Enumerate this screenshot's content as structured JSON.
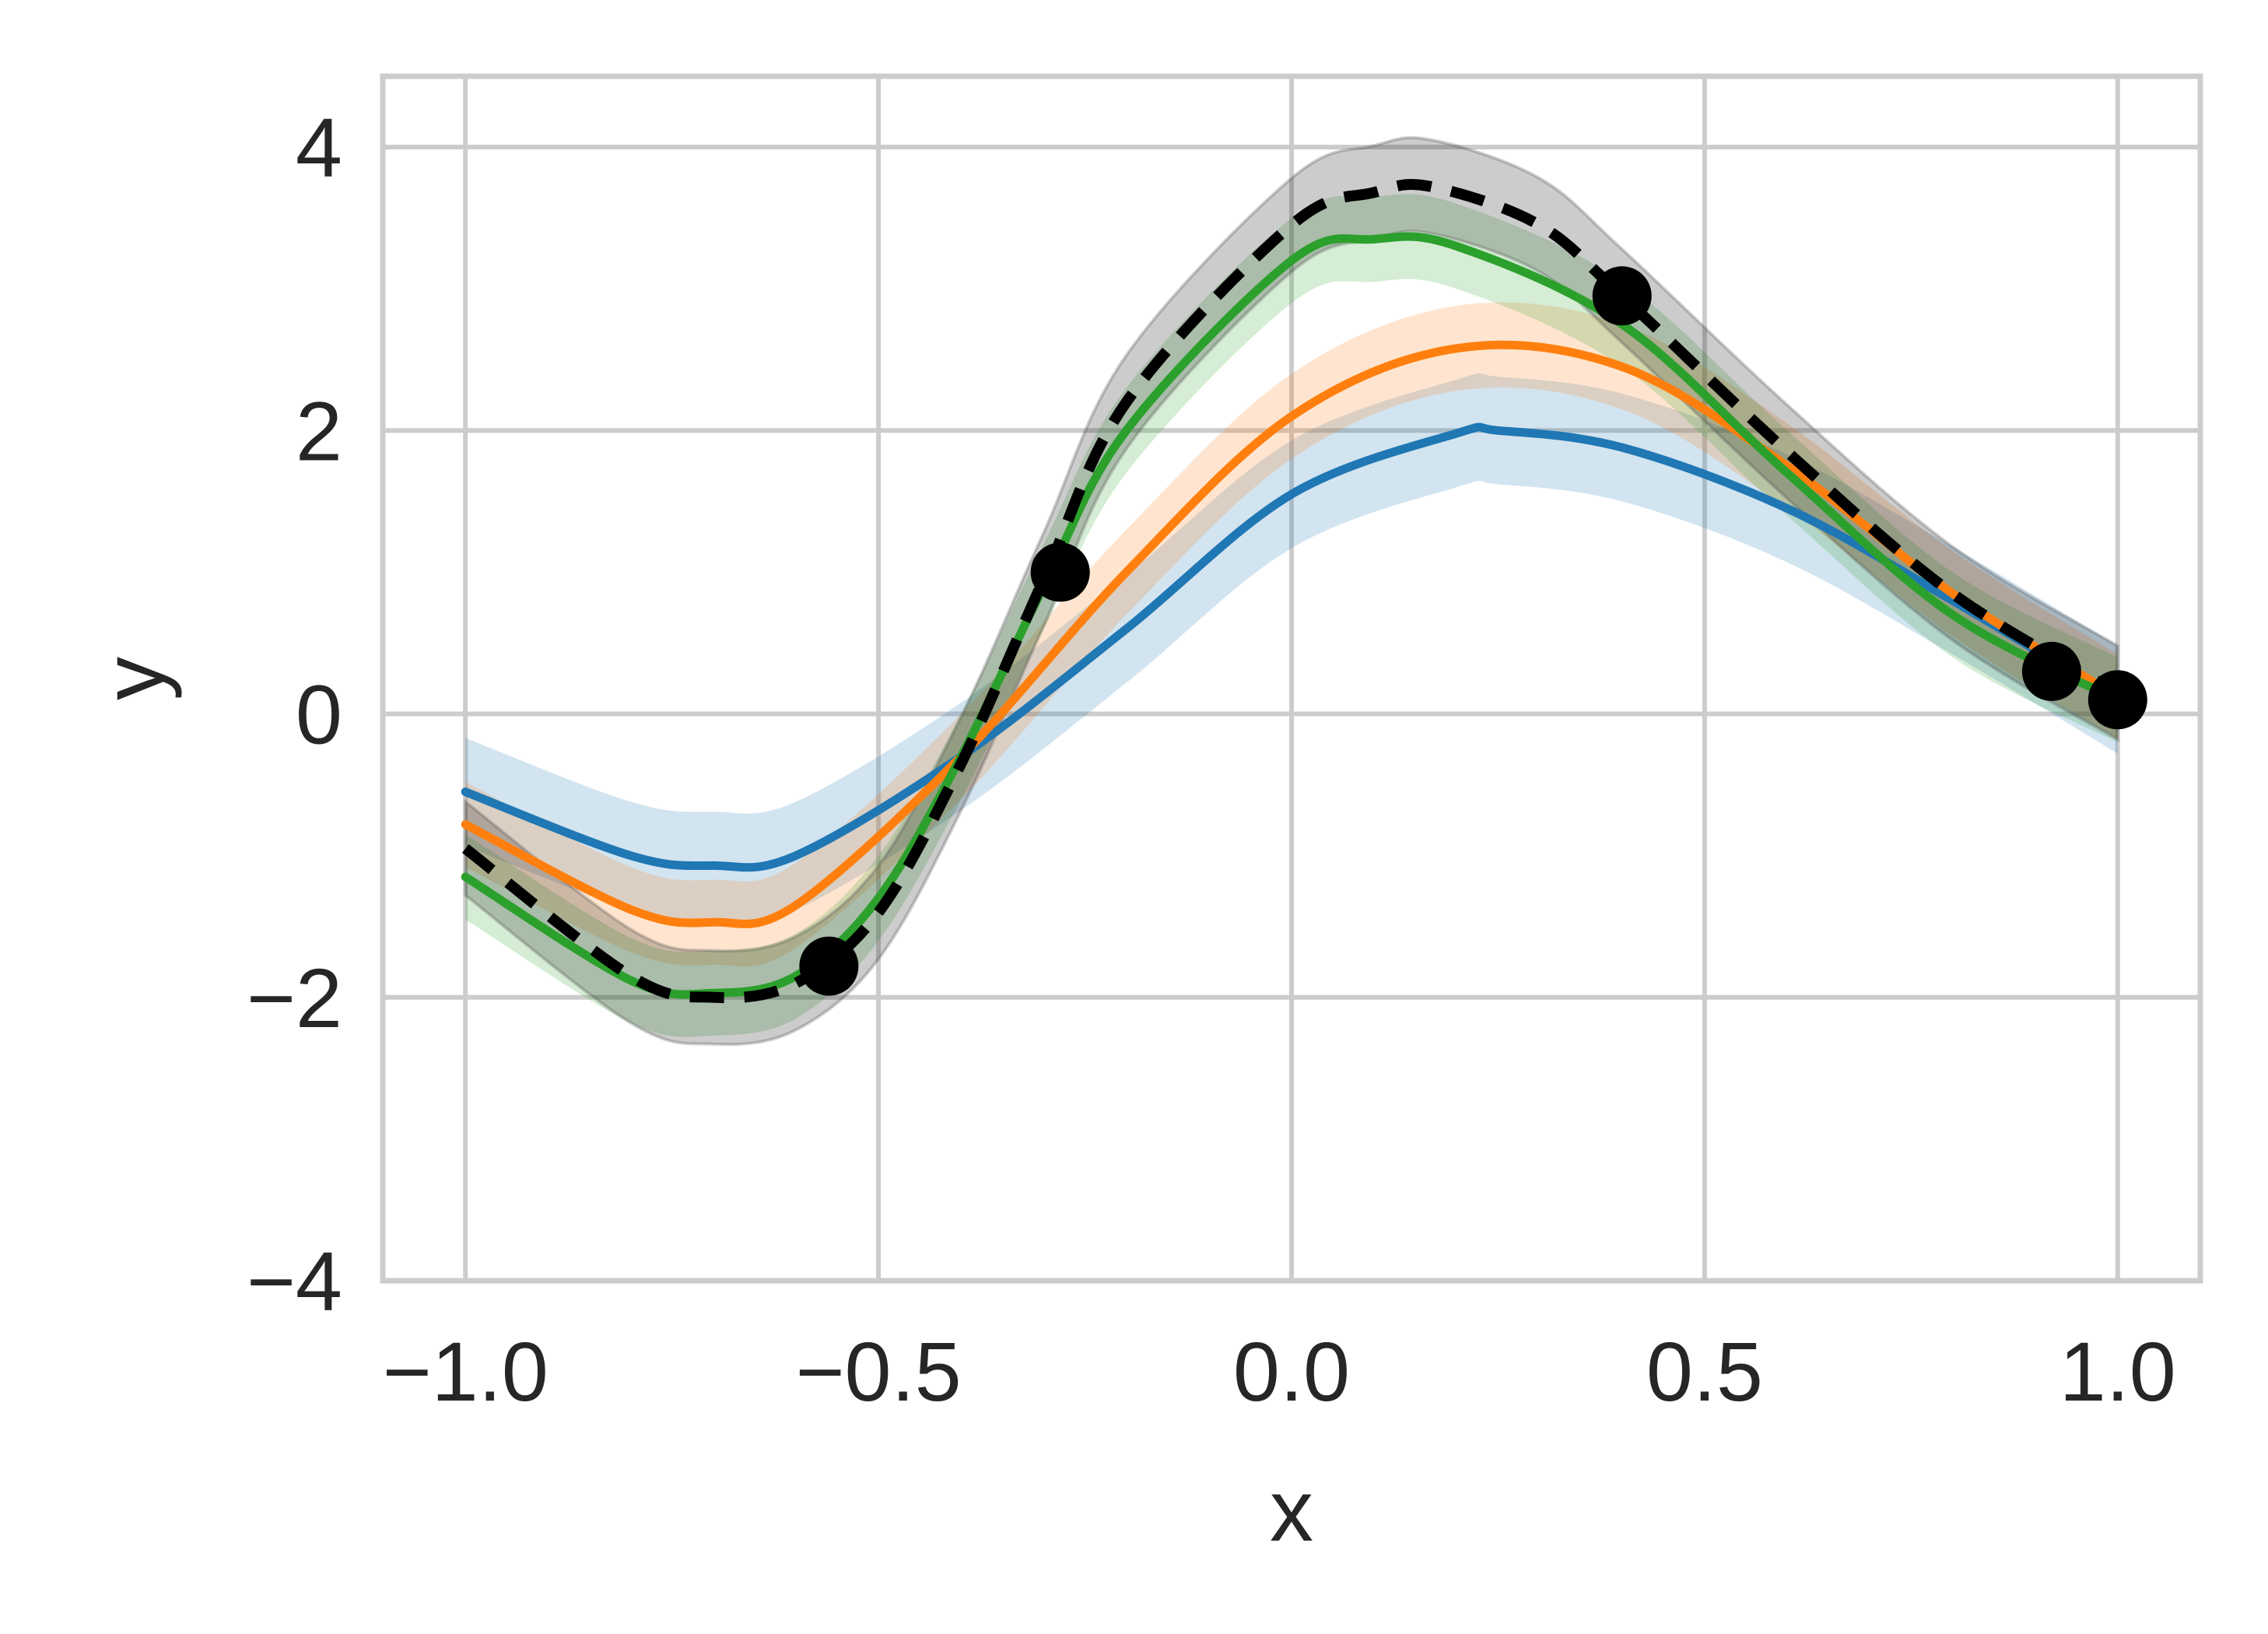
{
  "chart_data": {
    "type": "line",
    "title": "",
    "xlabel": "x",
    "ylabel": "y",
    "xlim": [
      -1.1,
      1.1
    ],
    "ylim": [
      -4,
      4.5
    ],
    "xticks": [
      -1.0,
      -0.5,
      0.0,
      0.5,
      1.0
    ],
    "xtick_labels": [
      "−1.0",
      "−0.5",
      "0.0",
      "0.5",
      "1.0"
    ],
    "yticks": [
      -4,
      -2,
      0,
      2,
      4
    ],
    "ytick_labels": [
      "−4",
      "−2",
      "0",
      "2",
      "4"
    ],
    "grid": true,
    "legend": "none",
    "series": [
      {
        "color": "#1f77b4",
        "x": [
          -1.0,
          -0.8,
          -0.7,
          -0.6,
          -0.4,
          -0.2,
          0.0,
          0.2,
          0.25,
          0.4,
          0.6,
          0.8,
          1.0
        ],
        "y": [
          -0.55,
          -1.0,
          -1.07,
          -1.0,
          -0.3,
          0.6,
          1.55,
          1.98,
          2.0,
          1.88,
          1.45,
          0.8,
          0.1
        ],
        "band_halfwidth": 0.38
      },
      {
        "color": "#ff7f0e",
        "x": [
          -1.0,
          -0.8,
          -0.7,
          -0.6,
          -0.4,
          -0.2,
          0.0,
          0.2,
          0.4,
          0.6,
          0.8,
          1.0
        ],
        "y": [
          -0.78,
          -1.38,
          -1.47,
          -1.35,
          -0.3,
          1.0,
          2.1,
          2.58,
          2.45,
          1.75,
          0.85,
          0.12
        ],
        "band_halfwidth": 0.3
      },
      {
        "color": "#2ca02c",
        "x": [
          -1.0,
          -0.8,
          -0.7,
          -0.6,
          -0.5,
          -0.4,
          -0.3,
          -0.2,
          0.0,
          0.1,
          0.2,
          0.4,
          0.6,
          0.8,
          1.0
        ],
        "y": [
          -1.15,
          -1.88,
          -1.97,
          -1.85,
          -1.3,
          -0.3,
          0.9,
          2.0,
          3.2,
          3.35,
          3.3,
          2.75,
          1.7,
          0.7,
          0.1
        ],
        "band_halfwidth": 0.3
      },
      {
        "color": "#000000",
        "dashed": true,
        "x": [
          -1.0,
          -0.8,
          -0.7,
          -0.6,
          -0.5,
          -0.4,
          -0.3,
          -0.2,
          0.0,
          0.1,
          0.17,
          0.3,
          0.4,
          0.6,
          0.8,
          1.0
        ],
        "y": [
          -0.95,
          -1.85,
          -2.0,
          -1.9,
          -1.4,
          -0.35,
          0.95,
          2.2,
          3.45,
          3.68,
          3.72,
          3.45,
          2.95,
          1.85,
          0.85,
          0.15
        ],
        "band_halfwidth": 0.33
      }
    ],
    "points": {
      "color": "#000000",
      "x": [
        -0.56,
        -0.28,
        0.4,
        0.92,
        1.0
      ],
      "y": [
        -1.78,
        1.0,
        2.95,
        0.3,
        0.1
      ]
    }
  }
}
